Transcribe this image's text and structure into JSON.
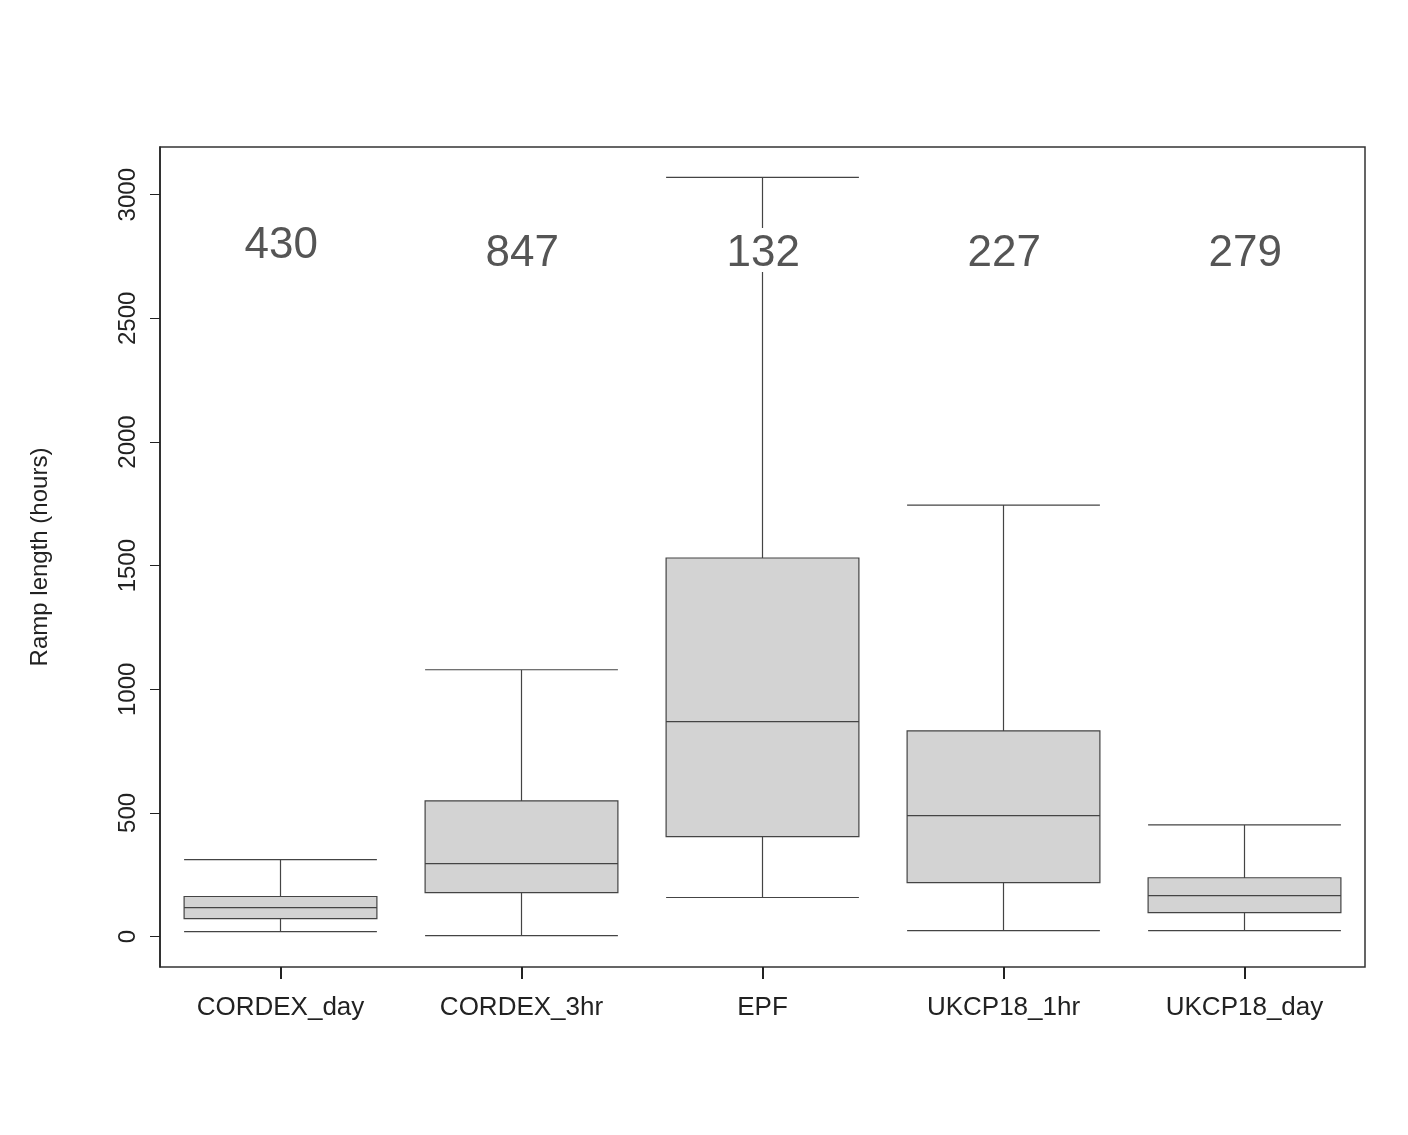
{
  "chart_data": {
    "type": "box",
    "ylabel": "Ramp length (hours)",
    "categories": [
      "CORDEX_day",
      "CORDEX_3hr",
      "EPF",
      "UKCP18_1hr",
      "UKCP18_day"
    ],
    "boxes": [
      {
        "low": 20,
        "q1": 73,
        "median": 117,
        "q3": 162,
        "high": 311
      },
      {
        "low": 4,
        "q1": 178,
        "median": 295,
        "q3": 549,
        "high": 1079
      },
      {
        "low": 158,
        "q1": 404,
        "median": 869,
        "q3": 1531,
        "high": 3070
      },
      {
        "low": 24,
        "q1": 218,
        "median": 489,
        "q3": 832,
        "high": 1745
      },
      {
        "low": 24,
        "q1": 97,
        "median": 166,
        "q3": 238,
        "high": 452
      }
    ],
    "color": "#d3d3d3",
    "ylim": [
      -123,
      3193
    ],
    "yticks": [
      0,
      500,
      1000,
      1500,
      2000,
      2500,
      3000
    ],
    "grid": false,
    "annotations": [
      "430",
      "847",
      "132",
      "227",
      "279"
    ]
  }
}
